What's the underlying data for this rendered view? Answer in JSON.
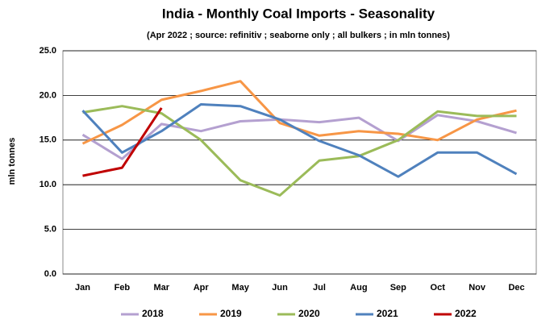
{
  "chart_data": {
    "type": "line",
    "title": "India - Monthly Coal Imports - Seasonality",
    "subtitle": "(Apr 2022 ; source: refinitiv ; seaborne only ; all bulkers ; in mln tonnes)",
    "y_label": "mln tonnes",
    "categories": [
      "Jan",
      "Feb",
      "Mar",
      "Apr",
      "May",
      "Jun",
      "Jul",
      "Aug",
      "Sep",
      "Oct",
      "Nov",
      "Dec"
    ],
    "series": [
      {
        "name": "2018",
        "color": "#b4a0d0",
        "values": [
          15.6,
          12.9,
          16.8,
          16.0,
          17.1,
          17.3,
          17.0,
          17.5,
          14.9,
          17.8,
          17.1,
          15.8
        ]
      },
      {
        "name": "2019",
        "color": "#f79646",
        "values": [
          14.6,
          16.7,
          19.5,
          20.5,
          21.6,
          16.9,
          15.5,
          16.0,
          15.7,
          15.0,
          17.3,
          18.3
        ]
      },
      {
        "name": "2020",
        "color": "#9bbb59",
        "values": [
          18.1,
          18.8,
          18.0,
          15.0,
          10.5,
          8.8,
          12.7,
          13.2,
          15.0,
          18.2,
          17.7,
          17.7
        ]
      },
      {
        "name": "2021",
        "color": "#4f81bd",
        "values": [
          18.3,
          13.6,
          16.0,
          19.0,
          18.8,
          17.3,
          14.9,
          13.3,
          10.9,
          13.6,
          13.6,
          11.2
        ]
      },
      {
        "name": "2022",
        "color": "#c00000",
        "values": [
          11.0,
          11.9,
          18.6,
          null,
          null,
          null,
          null,
          null,
          null,
          null,
          null,
          null
        ]
      }
    ],
    "ylim": [
      0,
      25
    ],
    "yticks": [
      {
        "value": 0,
        "label": "0.0"
      },
      {
        "value": 5,
        "label": "5.0"
      },
      {
        "value": 10,
        "label": "10.0"
      },
      {
        "value": 15,
        "label": "15.0"
      },
      {
        "value": 20,
        "label": "20.0"
      },
      {
        "value": 25,
        "label": "25.0"
      }
    ],
    "grid": true,
    "legend": "bottom"
  }
}
